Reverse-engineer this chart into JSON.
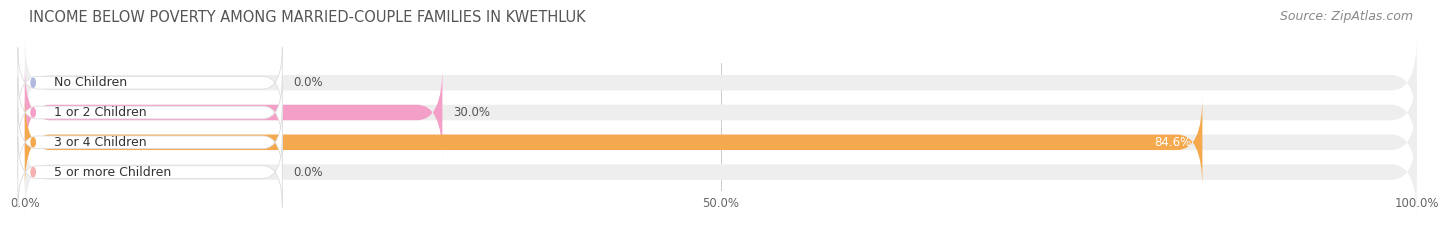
{
  "title": "INCOME BELOW POVERTY AMONG MARRIED-COUPLE FAMILIES IN KWETHLUK",
  "source": "Source: ZipAtlas.com",
  "categories": [
    "No Children",
    "1 or 2 Children",
    "3 or 4 Children",
    "5 or more Children"
  ],
  "values": [
    0.0,
    30.0,
    84.6,
    0.0
  ],
  "bar_colors": [
    "#b0b8e0",
    "#f49fc8",
    "#f5a94e",
    "#f5b0b0"
  ],
  "label_bg_colors": [
    "#e8ecf7",
    "#fdeaf4",
    "#fef3e0",
    "#fdeaea"
  ],
  "value_inside_colors": [
    "#555555",
    "#555555",
    "#ffffff",
    "#555555"
  ],
  "bg_bar_color": "#eeeeee",
  "xlim": [
    0,
    100
  ],
  "xticks": [
    0.0,
    50.0,
    100.0
  ],
  "xtick_labels": [
    "0.0%",
    "50.0%",
    "100.0%"
  ],
  "bar_height": 0.52,
  "figsize": [
    14.06,
    2.33
  ],
  "dpi": 100,
  "title_fontsize": 10.5,
  "label_fontsize": 9,
  "tick_fontsize": 8.5,
  "source_fontsize": 9,
  "value_label_fontsize": 8.5,
  "fig_bg": "#ffffff",
  "ax_bg": "#ffffff"
}
